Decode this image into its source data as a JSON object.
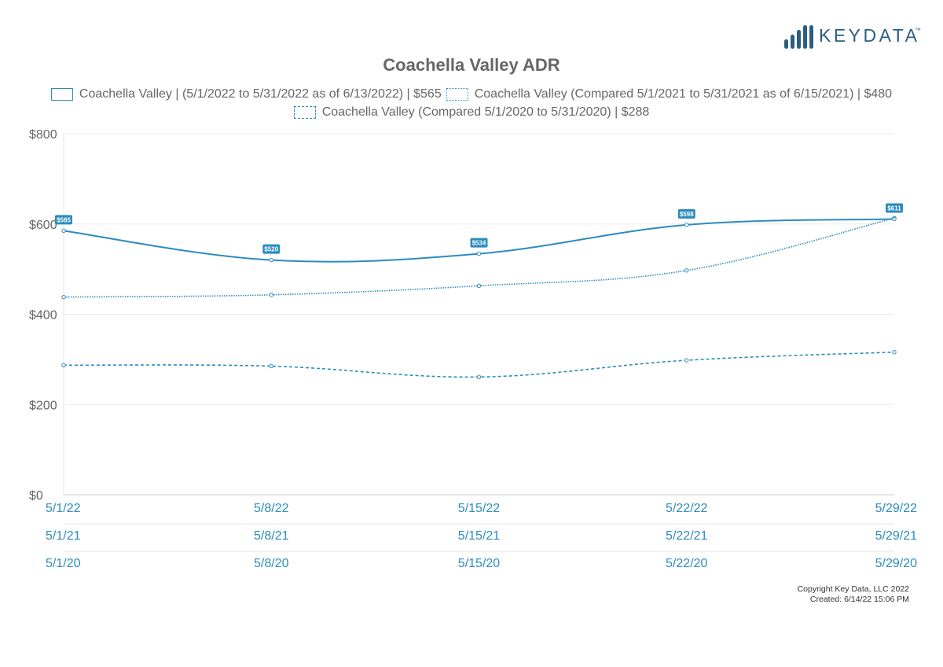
{
  "logo": {
    "text": "KEYDATA",
    "tm": "™",
    "color": "#2a5e83"
  },
  "chart_data": {
    "type": "line",
    "title": "Coachella Valley ADR",
    "xlabel": "",
    "ylabel": "",
    "ylim": [
      0,
      800
    ],
    "y_ticks": [
      "$0",
      "$200",
      "$400",
      "$600",
      "$800"
    ],
    "y_tick_values": [
      0,
      200,
      400,
      600,
      800
    ],
    "x_axes": [
      [
        "5/1/22",
        "5/8/22",
        "5/15/22",
        "5/22/22",
        "5/29/22"
      ],
      [
        "5/1/21",
        "5/8/21",
        "5/15/21",
        "5/22/21",
        "5/29/21"
      ],
      [
        "5/1/20",
        "5/8/20",
        "5/15/20",
        "5/22/20",
        "5/29/20"
      ]
    ],
    "grid": true,
    "legend_position": "top",
    "series": [
      {
        "name": "Coachella Valley | (5/1/2022 to 5/31/2022 as of 6/13/2022) | $565",
        "style": "solid",
        "color": "#2b8cbe",
        "values": [
          585,
          520,
          534,
          598,
          611
        ],
        "labels": [
          "$585",
          "$520",
          "$534",
          "$598",
          "$611"
        ]
      },
      {
        "name": "Coachella Valley (Compared 5/1/2021 to 5/31/2021 as of 6/15/2021) | $480",
        "style": "dotted",
        "color": "#2b8cbe",
        "values": [
          438,
          443,
          463,
          497,
          613
        ]
      },
      {
        "name": "Coachella Valley (Compared 5/1/2020 to 5/31/2020) | $288",
        "style": "dashed",
        "color": "#2b8cbe",
        "values": [
          287,
          285,
          261,
          298,
          316
        ]
      }
    ]
  },
  "footer": {
    "copyright": "Copyright Key Data, LLC 2022",
    "created": "Created: 6/14/22 15:06 PM"
  }
}
